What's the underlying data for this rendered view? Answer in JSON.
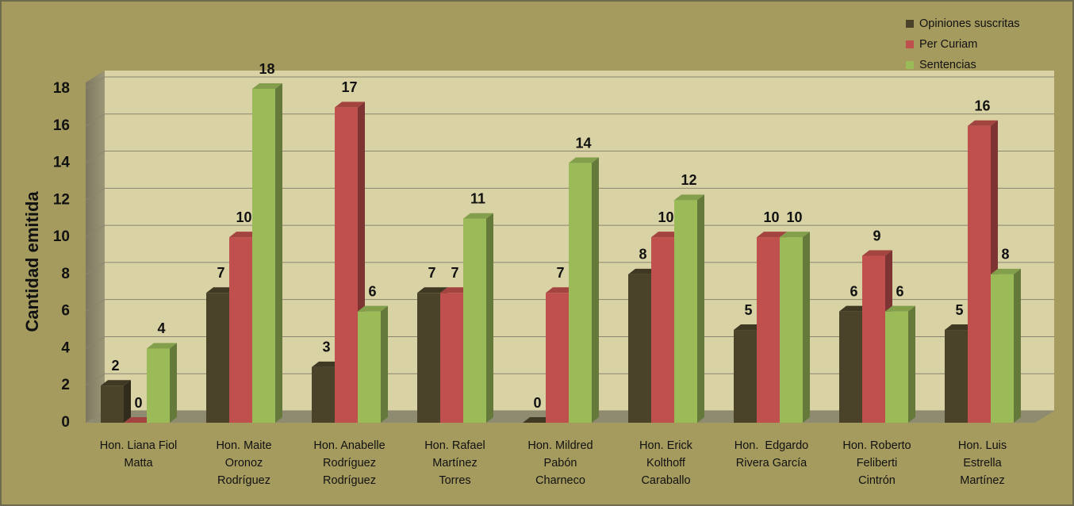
{
  "chart_data": {
    "type": "bar3d",
    "y_label": "Cantidad emitida",
    "categories": [
      [
        "Hon. Liana Fiol",
        "Matta"
      ],
      [
        "Hon. Maite",
        "Oronoz",
        "Rodríguez"
      ],
      [
        "Hon. Anabelle",
        "Rodríguez",
        "Rodríguez"
      ],
      [
        "Hon. Rafael",
        "Martínez",
        "Torres"
      ],
      [
        "Hon. Mildred",
        "Pabón",
        "Charneco"
      ],
      [
        "Hon. Erick",
        "Kolthoff",
        "Caraballo"
      ],
      [
        "Hon.  Edgardo",
        "Rivera García"
      ],
      [
        "Hon. Roberto",
        "Feliberti",
        "Cintrón"
      ],
      [
        "Hon. Luis",
        "Estrella",
        "Martínez"
      ]
    ],
    "series": [
      {
        "name": "Opiniones suscritas",
        "color": "#4a4229",
        "values": [
          2,
          7,
          3,
          7,
          0,
          8,
          5,
          6,
          5
        ]
      },
      {
        "name": "Per Curiam",
        "color": "#c0504d",
        "values": [
          0,
          10,
          17,
          7,
          7,
          10,
          10,
          9,
          16
        ]
      },
      {
        "name": "Sentencias",
        "color": "#9bbb59",
        "values": [
          4,
          18,
          6,
          11,
          14,
          12,
          10,
          6,
          8
        ]
      }
    ],
    "ylim": [
      0,
      18
    ],
    "yticks": [
      0,
      2,
      4,
      6,
      8,
      10,
      12,
      14,
      16,
      18
    ],
    "grid": true,
    "legend": "top-right"
  }
}
